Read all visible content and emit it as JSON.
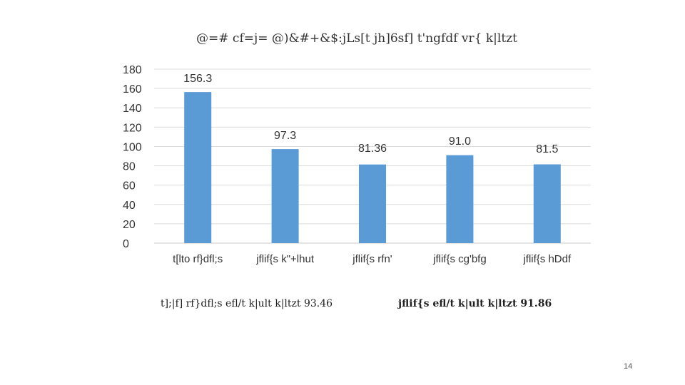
{
  "chart_data": {
    "type": "bar",
    "title": "@=# cf=j= @)&#+&$:jLs[t jh]6sf] t'ngfdf vr{ k|ltzt",
    "categories": [
      "t[lto rf}dfl;s",
      "jflif{s k\"+lhut",
      "jflif{s rfn'",
      "jflif{s cg'bfg",
      "jflif{s hDdf"
    ],
    "values": [
      156.3,
      97.3,
      81.36,
      91.0,
      81.5
    ],
    "data_labels": [
      "156.3",
      "97.3",
      "81.36",
      "91.0",
      "81.5"
    ],
    "ylim": [
      0,
      180
    ],
    "yticks": [
      0,
      20,
      40,
      60,
      80,
      100,
      120,
      140,
      160,
      180
    ],
    "grid": true,
    "bar_color": "#5B9BD5"
  },
  "notes": {
    "left": "t];|f] rf}dfl;s efl/t k|ult k|ltzt 93.46",
    "right": "jflif{s efl/t k|ult k|ltzt 91.86"
  },
  "page_number": "14"
}
